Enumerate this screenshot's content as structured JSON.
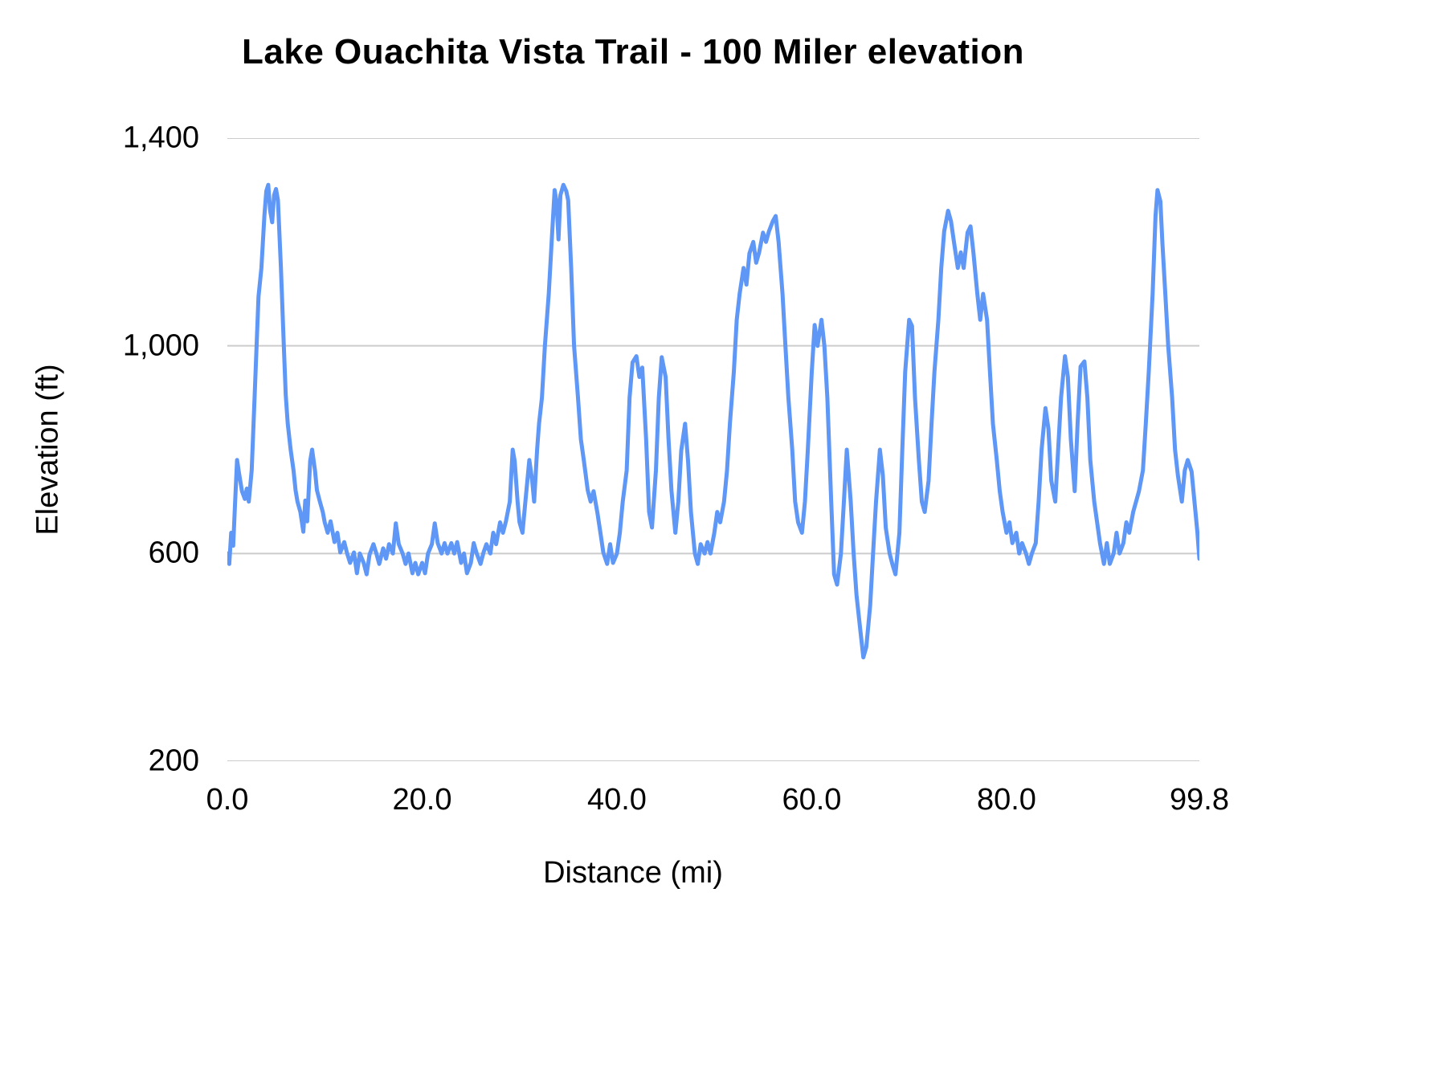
{
  "chart": {
    "title": "Lake Ouachita Vista Trail - 100 Miler elevation",
    "x_axis_label": "Distance (mi)",
    "y_axis_label": "Elevation (ft)"
  },
  "chart_data": {
    "type": "line",
    "title": "Lake Ouachita Vista Trail - 100 Miler elevation",
    "xlabel": "Distance (mi)",
    "ylabel": "Elevation (ft)",
    "xlim": [
      0,
      99.8
    ],
    "ylim": [
      200,
      1400
    ],
    "grid": true,
    "legend": "none",
    "line_color": "#5e97f6",
    "grid_color": "#cccccc",
    "x_ticks": [
      {
        "value": 0,
        "label": "0.0"
      },
      {
        "value": 20,
        "label": "20.0"
      },
      {
        "value": 40,
        "label": "40.0"
      },
      {
        "value": 60,
        "label": "60.0"
      },
      {
        "value": 80,
        "label": "80.0"
      },
      {
        "value": 99.8,
        "label": "99.8"
      }
    ],
    "y_ticks": [
      {
        "value": 200,
        "label": "200"
      },
      {
        "value": 600,
        "label": "600"
      },
      {
        "value": 1000,
        "label": "1,000"
      },
      {
        "value": 1400,
        "label": "1,400"
      }
    ],
    "series": [
      {
        "name": "Elevation",
        "points": [
          [
            0,
            600
          ],
          [
            0.2,
            580
          ],
          [
            0.4,
            640
          ],
          [
            0.6,
            615
          ],
          [
            0.8,
            700
          ],
          [
            1,
            780
          ],
          [
            1.2,
            755
          ],
          [
            1.5,
            720
          ],
          [
            1.8,
            705
          ],
          [
            2,
            725
          ],
          [
            2.2,
            700
          ],
          [
            2.5,
            760
          ],
          [
            2.8,
            900
          ],
          [
            3,
            1000
          ],
          [
            3.2,
            1095
          ],
          [
            3.5,
            1150
          ],
          [
            3.8,
            1250
          ],
          [
            4,
            1298
          ],
          [
            4.2,
            1310
          ],
          [
            4.4,
            1260
          ],
          [
            4.6,
            1238
          ],
          [
            4.8,
            1290
          ],
          [
            5,
            1302
          ],
          [
            5.2,
            1280
          ],
          [
            5.5,
            1150
          ],
          [
            5.8,
            1000
          ],
          [
            6,
            905
          ],
          [
            6.2,
            850
          ],
          [
            6.5,
            800
          ],
          [
            6.8,
            760
          ],
          [
            7,
            722
          ],
          [
            7.2,
            700
          ],
          [
            7.5,
            680
          ],
          [
            7.8,
            642
          ],
          [
            8,
            702
          ],
          [
            8.2,
            662
          ],
          [
            8.5,
            778
          ],
          [
            8.7,
            800
          ],
          [
            9,
            760
          ],
          [
            9.2,
            722
          ],
          [
            9.5,
            700
          ],
          [
            9.8,
            680
          ],
          [
            10,
            660
          ],
          [
            10.3,
            640
          ],
          [
            10.6,
            662
          ],
          [
            11,
            622
          ],
          [
            11.3,
            640
          ],
          [
            11.6,
            602
          ],
          [
            12,
            622
          ],
          [
            12.3,
            600
          ],
          [
            12.6,
            582
          ],
          [
            13,
            602
          ],
          [
            13.3,
            562
          ],
          [
            13.6,
            600
          ],
          [
            14,
            582
          ],
          [
            14.3,
            560
          ],
          [
            14.6,
            598
          ],
          [
            15,
            618
          ],
          [
            15.3,
            600
          ],
          [
            15.6,
            580
          ],
          [
            16,
            610
          ],
          [
            16.3,
            590
          ],
          [
            16.6,
            618
          ],
          [
            17,
            600
          ],
          [
            17.3,
            658
          ],
          [
            17.6,
            618
          ],
          [
            18,
            600
          ],
          [
            18.3,
            580
          ],
          [
            18.6,
            600
          ],
          [
            19,
            562
          ],
          [
            19.3,
            582
          ],
          [
            19.6,
            560
          ],
          [
            20,
            582
          ],
          [
            20.3,
            562
          ],
          [
            20.6,
            600
          ],
          [
            21,
            618
          ],
          [
            21.3,
            658
          ],
          [
            21.6,
            620
          ],
          [
            22,
            600
          ],
          [
            22.3,
            620
          ],
          [
            22.6,
            600
          ],
          [
            23,
            620
          ],
          [
            23.3,
            600
          ],
          [
            23.6,
            622
          ],
          [
            24,
            582
          ],
          [
            24.3,
            600
          ],
          [
            24.6,
            562
          ],
          [
            25,
            582
          ],
          [
            25.3,
            620
          ],
          [
            25.6,
            600
          ],
          [
            26,
            580
          ],
          [
            26.3,
            602
          ],
          [
            26.6,
            618
          ],
          [
            27,
            600
          ],
          [
            27.3,
            640
          ],
          [
            27.6,
            618
          ],
          [
            28,
            660
          ],
          [
            28.3,
            640
          ],
          [
            28.6,
            662
          ],
          [
            29,
            700
          ],
          [
            29.3,
            800
          ],
          [
            29.5,
            778
          ],
          [
            29.8,
            700
          ],
          [
            30,
            660
          ],
          [
            30.3,
            640
          ],
          [
            30.6,
            700
          ],
          [
            31,
            780
          ],
          [
            31.3,
            740
          ],
          [
            31.5,
            700
          ],
          [
            31.8,
            800
          ],
          [
            32,
            850
          ],
          [
            32.3,
            900
          ],
          [
            32.6,
            1000
          ],
          [
            33,
            1100
          ],
          [
            33.3,
            1200
          ],
          [
            33.6,
            1300
          ],
          [
            33.8,
            1278
          ],
          [
            34,
            1205
          ],
          [
            34.2,
            1290
          ],
          [
            34.5,
            1310
          ],
          [
            34.8,
            1298
          ],
          [
            35,
            1280
          ],
          [
            35.3,
            1150
          ],
          [
            35.6,
            1000
          ],
          [
            36,
            900
          ],
          [
            36.3,
            820
          ],
          [
            36.6,
            780
          ],
          [
            37,
            722
          ],
          [
            37.3,
            700
          ],
          [
            37.6,
            720
          ],
          [
            38,
            678
          ],
          [
            38.3,
            640
          ],
          [
            38.6,
            602
          ],
          [
            39,
            580
          ],
          [
            39.3,
            618
          ],
          [
            39.6,
            582
          ],
          [
            40,
            600
          ],
          [
            40.3,
            640
          ],
          [
            40.6,
            700
          ],
          [
            41,
            760
          ],
          [
            41.3,
            900
          ],
          [
            41.6,
            968
          ],
          [
            42,
            980
          ],
          [
            42.3,
            940
          ],
          [
            42.6,
            958
          ],
          [
            43,
            820
          ],
          [
            43.3,
            680
          ],
          [
            43.6,
            650
          ],
          [
            44,
            760
          ],
          [
            44.3,
            900
          ],
          [
            44.6,
            978
          ],
          [
            45,
            940
          ],
          [
            45.3,
            820
          ],
          [
            45.6,
            720
          ],
          [
            46,
            640
          ],
          [
            46.3,
            700
          ],
          [
            46.6,
            798
          ],
          [
            47,
            850
          ],
          [
            47.3,
            778
          ],
          [
            47.6,
            680
          ],
          [
            48,
            600
          ],
          [
            48.3,
            580
          ],
          [
            48.6,
            618
          ],
          [
            49,
            600
          ],
          [
            49.3,
            622
          ],
          [
            49.6,
            600
          ],
          [
            50,
            640
          ],
          [
            50.3,
            680
          ],
          [
            50.6,
            660
          ],
          [
            51,
            700
          ],
          [
            51.3,
            760
          ],
          [
            51.6,
            850
          ],
          [
            52,
            950
          ],
          [
            52.3,
            1050
          ],
          [
            52.6,
            1100
          ],
          [
            53,
            1150
          ],
          [
            53.3,
            1118
          ],
          [
            53.6,
            1178
          ],
          [
            54,
            1200
          ],
          [
            54.3,
            1160
          ],
          [
            54.6,
            1180
          ],
          [
            55,
            1218
          ],
          [
            55.3,
            1200
          ],
          [
            55.6,
            1220
          ],
          [
            56,
            1240
          ],
          [
            56.3,
            1250
          ],
          [
            56.6,
            1200
          ],
          [
            57,
            1100
          ],
          [
            57.3,
            1000
          ],
          [
            57.6,
            900
          ],
          [
            58,
            800
          ],
          [
            58.3,
            700
          ],
          [
            58.6,
            660
          ],
          [
            59,
            640
          ],
          [
            59.3,
            700
          ],
          [
            59.6,
            800
          ],
          [
            60,
            950
          ],
          [
            60.3,
            1040
          ],
          [
            60.6,
            1000
          ],
          [
            61,
            1050
          ],
          [
            61.3,
            1000
          ],
          [
            61.6,
            900
          ],
          [
            62,
            700
          ],
          [
            62.3,
            560
          ],
          [
            62.6,
            540
          ],
          [
            63,
            600
          ],
          [
            63.3,
            700
          ],
          [
            63.6,
            800
          ],
          [
            64,
            700
          ],
          [
            64.3,
            600
          ],
          [
            64.6,
            520
          ],
          [
            65,
            450
          ],
          [
            65.3,
            400
          ],
          [
            65.6,
            420
          ],
          [
            66,
            500
          ],
          [
            66.3,
            600
          ],
          [
            66.6,
            700
          ],
          [
            67,
            800
          ],
          [
            67.3,
            750
          ],
          [
            67.6,
            650
          ],
          [
            68,
            600
          ],
          [
            68.3,
            578
          ],
          [
            68.6,
            560
          ],
          [
            69,
            640
          ],
          [
            69.3,
            800
          ],
          [
            69.6,
            950
          ],
          [
            70,
            1050
          ],
          [
            70.3,
            1038
          ],
          [
            70.6,
            900
          ],
          [
            71,
            780
          ],
          [
            71.3,
            700
          ],
          [
            71.6,
            680
          ],
          [
            72,
            740
          ],
          [
            72.3,
            850
          ],
          [
            72.6,
            950
          ],
          [
            73,
            1050
          ],
          [
            73.3,
            1150
          ],
          [
            73.6,
            1220
          ],
          [
            74,
            1260
          ],
          [
            74.3,
            1240
          ],
          [
            74.6,
            1200
          ],
          [
            75,
            1150
          ],
          [
            75.3,
            1180
          ],
          [
            75.6,
            1150
          ],
          [
            76,
            1218
          ],
          [
            76.3,
            1230
          ],
          [
            76.6,
            1180
          ],
          [
            77,
            1100
          ],
          [
            77.3,
            1050
          ],
          [
            77.6,
            1100
          ],
          [
            78,
            1050
          ],
          [
            78.3,
            950
          ],
          [
            78.6,
            850
          ],
          [
            79,
            780
          ],
          [
            79.3,
            720
          ],
          [
            79.6,
            680
          ],
          [
            80,
            640
          ],
          [
            80.3,
            660
          ],
          [
            80.6,
            620
          ],
          [
            81,
            640
          ],
          [
            81.3,
            600
          ],
          [
            81.6,
            620
          ],
          [
            82,
            600
          ],
          [
            82.3,
            580
          ],
          [
            82.6,
            600
          ],
          [
            83,
            620
          ],
          [
            83.3,
            700
          ],
          [
            83.6,
            800
          ],
          [
            84,
            880
          ],
          [
            84.3,
            840
          ],
          [
            84.6,
            740
          ],
          [
            85,
            700
          ],
          [
            85.3,
            800
          ],
          [
            85.6,
            900
          ],
          [
            86,
            980
          ],
          [
            86.3,
            940
          ],
          [
            86.6,
            820
          ],
          [
            87,
            720
          ],
          [
            87.3,
            850
          ],
          [
            87.6,
            960
          ],
          [
            88,
            970
          ],
          [
            88.3,
            900
          ],
          [
            88.6,
            780
          ],
          [
            89,
            700
          ],
          [
            89.3,
            660
          ],
          [
            89.6,
            620
          ],
          [
            90,
            580
          ],
          [
            90.3,
            620
          ],
          [
            90.6,
            580
          ],
          [
            91,
            600
          ],
          [
            91.3,
            640
          ],
          [
            91.6,
            600
          ],
          [
            92,
            620
          ],
          [
            92.3,
            660
          ],
          [
            92.6,
            640
          ],
          [
            93,
            680
          ],
          [
            93.3,
            700
          ],
          [
            93.6,
            720
          ],
          [
            94,
            760
          ],
          [
            94.3,
            850
          ],
          [
            94.6,
            950
          ],
          [
            95,
            1100
          ],
          [
            95.3,
            1250
          ],
          [
            95.5,
            1300
          ],
          [
            95.8,
            1278
          ],
          [
            96,
            1200
          ],
          [
            96.3,
            1100
          ],
          [
            96.6,
            1000
          ],
          [
            97,
            900
          ],
          [
            97.3,
            800
          ],
          [
            97.6,
            750
          ],
          [
            98,
            700
          ],
          [
            98.3,
            760
          ],
          [
            98.6,
            780
          ],
          [
            99,
            758
          ],
          [
            99.3,
            700
          ],
          [
            99.6,
            640
          ],
          [
            99.8,
            590
          ]
        ]
      }
    ]
  }
}
